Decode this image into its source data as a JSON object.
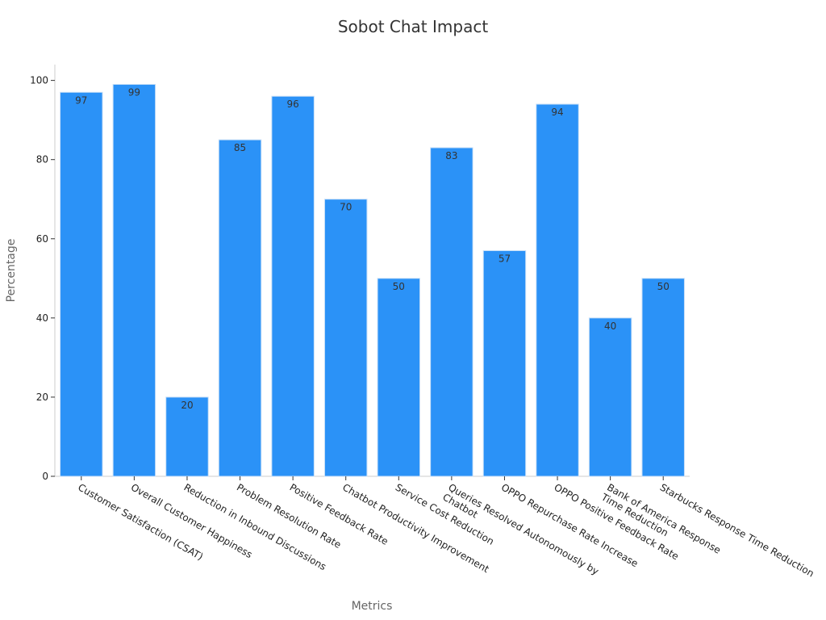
{
  "chart_data": {
    "type": "bar",
    "title": "Sobot Chat Impact",
    "xlabel": "Metrics",
    "ylabel": "Percentage",
    "categories": [
      [
        "Customer Satisfaction (CSAT)"
      ],
      [
        "Overall Customer Happiness"
      ],
      [
        "Reduction in Inbound Discussions"
      ],
      [
        "Problem Resolution Rate"
      ],
      [
        "Positive Feedback Rate"
      ],
      [
        "Chatbot Productivity Improvement"
      ],
      [
        "Service Cost Reduction"
      ],
      [
        "Queries Resolved Autonomously by",
        "Chatbot"
      ],
      [
        "OPPO Repurchase Rate Increase"
      ],
      [
        "OPPO Positive Feedback Rate"
      ],
      [
        "Bank of America Response",
        "Time Reduction"
      ],
      [
        "Starbucks Response Time Reduction"
      ]
    ],
    "values": [
      97,
      99,
      20,
      85,
      96,
      70,
      50,
      83,
      57,
      94,
      40,
      50
    ],
    "ylim": [
      0,
      104
    ],
    "yticks": [
      0,
      20,
      40,
      60,
      80,
      100
    ],
    "bar_color": "#2b92f7",
    "bar_edge_color": "#c8dff7",
    "grid": false,
    "legend": "none"
  }
}
